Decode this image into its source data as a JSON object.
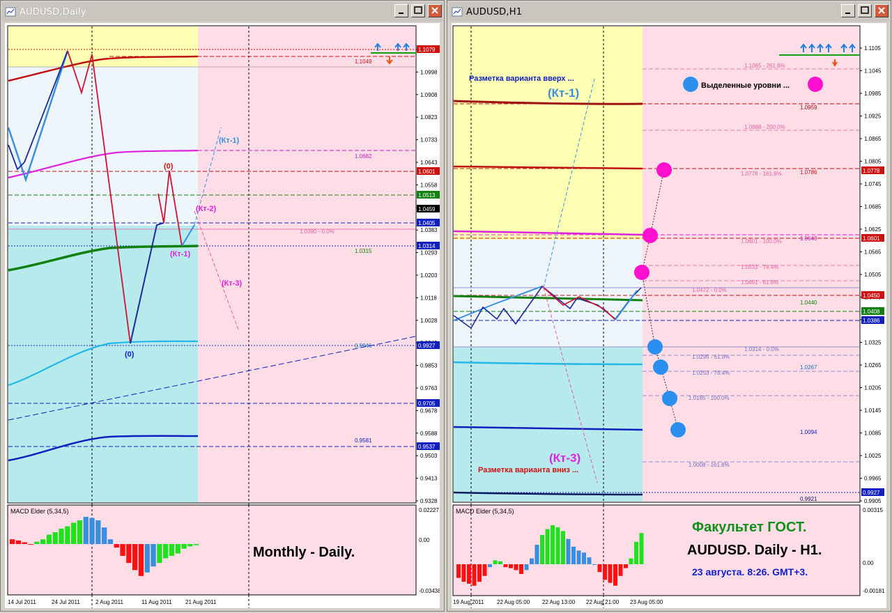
{
  "left_window": {
    "title": "AUDUSD,Daily",
    "price_axis": [
      "1.1079",
      "1.0998",
      "1.0908",
      "1.0823",
      "1.0733",
      "1.0643",
      "1.0558",
      "1.0468",
      "1.0383",
      "1.0293",
      "1.0203",
      "1.0118",
      "1.0028",
      "0.9942",
      "0.9853",
      "0.9763",
      "0.9678",
      "0.9588",
      "0.9503",
      "0.9413",
      "0.9328"
    ],
    "price_tags": [
      {
        "text": "1.1079",
        "color": "#d01010"
      },
      {
        "text": "1.0601",
        "color": "#d01010"
      },
      {
        "text": "1.0513",
        "color": "#108010"
      },
      {
        "text": "1.0459",
        "color": "#000000"
      },
      {
        "text": "1.0405",
        "color": "#1020c0"
      },
      {
        "text": "1.0314",
        "color": "#1020c0"
      },
      {
        "text": "0.9927",
        "color": "#1020c0"
      },
      {
        "text": "0.9705",
        "color": "#1020c0"
      },
      {
        "text": "0.9537",
        "color": "#1020c0"
      }
    ],
    "level_labels": [
      "1.1049",
      "1.0682",
      "1.0390 - 0.0%",
      "1.0315",
      "0.9946",
      "0.9581"
    ],
    "wave_labels": [
      "(Кт-1)",
      "(Кт-2)",
      "(Кт-1)",
      "(Кт-3)",
      "(0)",
      "(0)"
    ],
    "macd": {
      "name": "MACD Elder (5,34,5)",
      "axis": [
        "0.02227",
        "0.00",
        "-0.03438"
      ]
    },
    "date_axis": [
      "14 Jul 2011",
      "24 Jul 2011",
      "2 Aug 2011",
      "11 Aug 2011",
      "21 Aug 2011"
    ],
    "caption": "Monthly - Daily."
  },
  "right_window": {
    "title": "AUDUSD,H1",
    "price_axis": [
      "1.1105",
      "1.1045",
      "1.0985",
      "1.0925",
      "1.0865",
      "1.0805",
      "1.0745",
      "1.0685",
      "1.0625",
      "1.0565",
      "1.0505",
      "1.0445",
      "1.0385",
      "1.0325",
      "1.0265",
      "1.0205",
      "1.0145",
      "1.0085",
      "1.0025",
      "0.9965",
      "0.9905"
    ],
    "price_tags": [
      {
        "text": "1.0778",
        "color": "#d01010"
      },
      {
        "text": "1.0601",
        "color": "#d01010"
      },
      {
        "text": "1.0450",
        "color": "#d01010"
      },
      {
        "text": "1.0408",
        "color": "#108010"
      },
      {
        "text": "1.0386",
        "color": "#1020c0"
      },
      {
        "text": "0.9927",
        "color": "#1020c0"
      }
    ],
    "fib_labels": [
      "1.1065 - 261.8%",
      "1.0888 - 200.0%",
      "1.0778 - 161.8%",
      "1.0601 - 100.0%",
      "1.0533 - 76.4%",
      "1.0491 - 61.8%",
      "1.0472 - 0.0%",
      "1.0314 - 0.0%",
      "1.0295 - 61.8%",
      "1.0253 - 76.4%",
      "1.0185 - 100.0%",
      "1.0008 - 161.8%"
    ],
    "level_labels": [
      "1.0959",
      "1.0786",
      "1.0643",
      "1.0440",
      "1.0267",
      "1.0094",
      "0.9921"
    ],
    "annotation_up": "Разметка варианта вверх ...",
    "annotation_down": "Разметка варианта вниз ...",
    "annotation_levels": "Выделенные уровни ...",
    "wave_labels": [
      "(Кт-1)",
      "(Кт-3)"
    ],
    "macd": {
      "name": "MACD Elder (5,34,5)",
      "axis": [
        "0.00315",
        "0.00",
        "-0.00181"
      ]
    },
    "date_axis": [
      "19 Aug 2011",
      "22 Aug 05:00",
      "22 Aug 13:00",
      "22 Aug 21:00",
      "23 Aug 05:00"
    ],
    "caption_line1": "Факультет ГОСТ.",
    "caption_line2": "AUDUSD. Daily - H1.",
    "caption_line3": "23 августа. 8:26. GMT+3."
  }
}
